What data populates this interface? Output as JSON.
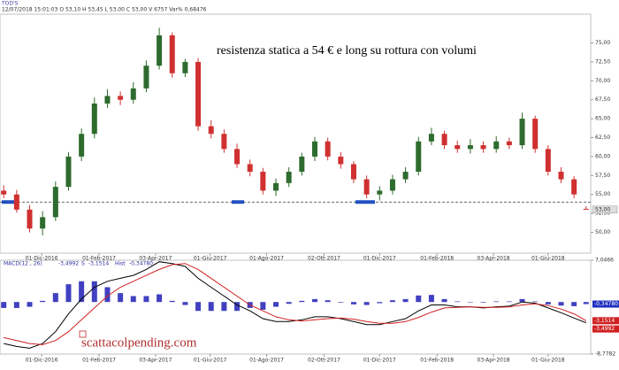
{
  "header": {
    "symbol": "TOD'S",
    "quote": "12/07/2018 15:01:03 O 53,10 H 53,45 L 53,00 C 53,00 V 6757 Var% 0,68476"
  },
  "chart_data": [
    {
      "type": "candlestick",
      "annotation": "resistenza statica a 54 € e long su rottura con volumi",
      "watermark": "scattacolpending.com",
      "level": 54,
      "up_color": "#2e6b2e",
      "down_color": "#d03030",
      "x": [
        "2016-10-21",
        "2016-11-04",
        "2016-11-18",
        "2016-12-02",
        "2016-12-16",
        "2016-12-30",
        "2017-01-13",
        "2017-01-27",
        "2017-02-10",
        "2017-02-24",
        "2017-03-10",
        "2017-03-24",
        "2017-04-07",
        "2017-04-21",
        "2017-05-05",
        "2017-05-19",
        "2017-06-02",
        "2017-06-16",
        "2017-06-30",
        "2017-07-14",
        "2017-07-28",
        "2017-08-11",
        "2017-08-25",
        "2017-09-08",
        "2017-09-22",
        "2017-10-06",
        "2017-10-20",
        "2017-11-03",
        "2017-11-17",
        "2017-12-01",
        "2017-12-15",
        "2017-12-29",
        "2018-01-12",
        "2018-01-26",
        "2018-02-09",
        "2018-02-23",
        "2018-03-09",
        "2018-03-23",
        "2018-04-06",
        "2018-04-20",
        "2018-05-04",
        "2018-05-18",
        "2018-06-01",
        "2018-06-15",
        "2018-06-29",
        "2018-07-12"
      ],
      "open": [
        55.5,
        55,
        53,
        50.5,
        52,
        56,
        60,
        63,
        67,
        68,
        67.5,
        69,
        72,
        76,
        71,
        72.5,
        64,
        63,
        61,
        59,
        58,
        55.5,
        56.5,
        58,
        60,
        62,
        60,
        59,
        57,
        55,
        55.5,
        57,
        58,
        62,
        63,
        61.5,
        61,
        61.5,
        61,
        62,
        61.5,
        65,
        61,
        58,
        57,
        53.1
      ],
      "high": [
        56.2,
        55.6,
        53.6,
        52.8,
        56.7,
        60.6,
        63.7,
        67.8,
        68.9,
        68.6,
        69.8,
        72.7,
        77,
        76.4,
        72.9,
        73,
        64.8,
        63.6,
        61.7,
        59.6,
        58.5,
        57.1,
        58.6,
        60.5,
        62.6,
        62.5,
        60.6,
        59.4,
        57.5,
        56.1,
        57.6,
        58.6,
        62.6,
        63.8,
        63.4,
        62.1,
        62.3,
        62,
        62.7,
        62.5,
        65.8,
        65.4,
        61.5,
        58.6,
        57.4,
        53.45
      ],
      "low": [
        54.5,
        52.6,
        50,
        49.6,
        51.5,
        55.5,
        59.4,
        62.4,
        66.4,
        66.8,
        67,
        68.5,
        71.5,
        70.4,
        70.5,
        63.4,
        62.4,
        60.5,
        58.5,
        57.4,
        55,
        54.8,
        56,
        57.5,
        59.4,
        59.5,
        58.4,
        56.5,
        54.5,
        54.2,
        55,
        56.5,
        57.5,
        61.5,
        61,
        60.5,
        60.4,
        60.5,
        60.5,
        61,
        61,
        60.5,
        57.5,
        56.5,
        54.5,
        53
      ],
      "close": [
        55,
        53,
        50.5,
        52,
        56,
        60,
        63,
        67,
        68,
        67.5,
        69,
        72,
        76,
        71,
        72.5,
        64,
        63,
        61,
        59,
        58,
        55.5,
        56.5,
        58,
        60,
        62,
        60,
        59,
        57,
        55,
        55.5,
        57,
        58,
        62,
        63,
        61.5,
        61,
        61.5,
        61,
        62,
        61.5,
        65,
        61,
        58,
        57,
        55,
        53
      ],
      "ylim": [
        47.25,
        78.8
      ],
      "yticks": [
        {
          "value": 50,
          "label": "50,00"
        },
        {
          "value": 52.5,
          "label": "52,50"
        },
        {
          "value": 55,
          "label": "55,00"
        },
        {
          "value": 57.5,
          "label": "57,50"
        },
        {
          "value": 60,
          "label": "60,00"
        },
        {
          "value": 62.5,
          "label": "62,50"
        },
        {
          "value": 65,
          "label": "65,00"
        },
        {
          "value": 67.5,
          "label": "67,50"
        },
        {
          "value": 70,
          "label": "70,00"
        },
        {
          "value": 72.5,
          "label": "72,50"
        },
        {
          "value": 75,
          "label": "75,00"
        }
      ],
      "last_price": {
        "value": 53,
        "label": "53,00"
      },
      "xlim": [
        "2016-10-17",
        "2018-07-17"
      ],
      "xticks": [
        {
          "value": "2016-12-01",
          "label": "01-Dic-2016"
        },
        {
          "value": "2017-02-01",
          "label": "01-Feb-2017"
        },
        {
          "value": "2017-04-03",
          "label": "03-Apr-2017"
        },
        {
          "value": "2017-06-01",
          "label": "01-Giu-2017"
        },
        {
          "value": "2017-08-01",
          "label": "01-Ago-2017"
        },
        {
          "value": "2017-10-02",
          "label": "02-Ott-2017"
        },
        {
          "value": "2017-12-01",
          "label": "01-Dic-2017"
        },
        {
          "value": "2018-02-01",
          "label": "01-Feb-2018"
        },
        {
          "value": "2018-04-03",
          "label": "03-Apr-2018"
        },
        {
          "value": "2018-06-01",
          "label": "01-Giu-2018"
        }
      ]
    },
    {
      "type": "macd",
      "title": "MACD",
      "params": "(12 , 26)",
      "macd_text": "-3,4992",
      "signal_key": "S",
      "signal_text": "-3,1514",
      "hist_key": "Hist",
      "hist_text": "-0,34780",
      "series": [
        {
          "name": "MACD",
          "color": "#000000",
          "values": [
            -7,
            -7.5,
            -7.8,
            -7,
            -5,
            -2,
            0.5,
            2.5,
            3.5,
            4,
            4.5,
            5.5,
            6.8,
            6.5,
            6,
            4,
            2.5,
            1,
            -0.5,
            -1.5,
            -2.8,
            -3.3,
            -3.3,
            -3,
            -2.5,
            -2.5,
            -2.8,
            -3.3,
            -3.8,
            -3.8,
            -3.3,
            -2.8,
            -1.5,
            -0.5,
            -0.5,
            -0.8,
            -0.8,
            -1,
            -0.8,
            -0.7,
            0,
            -0.2,
            -1,
            -1.8,
            -2.7,
            -3.4992
          ]
        },
        {
          "name": "S",
          "color": "#d02020",
          "values": [
            -6,
            -6.5,
            -7,
            -7.2,
            -6.5,
            -5,
            -3,
            -1,
            1,
            2.5,
            3.5,
            4.5,
            5.5,
            6.3,
            6.5,
            5.5,
            4,
            2.5,
            1,
            -0.5,
            -1.5,
            -2.5,
            -3,
            -3.2,
            -3,
            -2.8,
            -2.7,
            -2.9,
            -3.3,
            -3.6,
            -3.6,
            -3.3,
            -2.6,
            -1.7,
            -1,
            -0.9,
            -0.8,
            -0.9,
            -0.9,
            -0.8,
            -0.5,
            -0.3,
            -0.6,
            -1.2,
            -2,
            -3.1514
          ]
        },
        {
          "name": "Hist",
          "color": "#4040c0",
          "values": [
            -1,
            -1,
            -0.8,
            0.2,
            1.5,
            3,
            3.5,
            3.5,
            2.5,
            1.5,
            1,
            1,
            1.3,
            0.2,
            -0.5,
            -1.5,
            -1.5,
            -1.5,
            -1.5,
            -1,
            -1.3,
            -0.8,
            -0.3,
            0.2,
            0.5,
            0.3,
            -0.1,
            -0.4,
            -0.5,
            -0.2,
            0.3,
            0.5,
            1.1,
            1.2,
            0.5,
            0.1,
            0,
            -0.1,
            0.1,
            0.1,
            0.5,
            0.1,
            -0.4,
            -0.6,
            -0.7,
            -0.3478
          ]
        }
      ],
      "ylim": [
        -8.7782,
        7.0466
      ],
      "yticks": [
        {
          "value": -8.7782,
          "label": "-8,7782"
        },
        {
          "value": 7.0466,
          "label": "7,0466"
        }
      ],
      "last_labels": [
        {
          "value": -0.3478,
          "label": "-0,34780"
        },
        {
          "value": -3.1514,
          "label": "-3,1514"
        },
        {
          "value": -3.4992,
          "label": "-3,4992"
        }
      ]
    }
  ]
}
